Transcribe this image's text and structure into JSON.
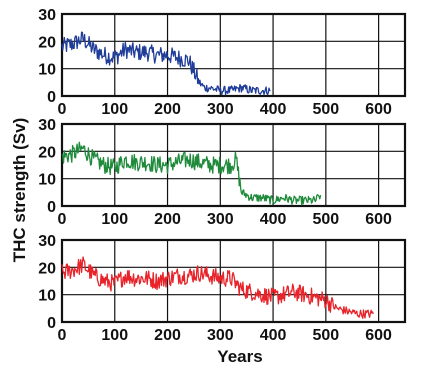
{
  "figure": {
    "ylabel": "THC strength (Sv)",
    "xlabel": "Years"
  },
  "chart_data": [
    {
      "type": "line",
      "xlim": [
        0,
        650
      ],
      "ylim": [
        0,
        30
      ],
      "x_ticks": [
        0,
        100,
        200,
        300,
        400,
        500,
        600
      ],
      "y_ticks": [
        0,
        10,
        20,
        30
      ],
      "grid": true,
      "color": "#1f3d99",
      "x": [
        0,
        20,
        40,
        60,
        80,
        100,
        120,
        140,
        160,
        180,
        200,
        220,
        240,
        250,
        260,
        270,
        280,
        300,
        320,
        340,
        360,
        380,
        395
      ],
      "y": [
        18,
        19,
        21,
        17,
        15,
        14,
        17,
        16,
        16,
        15,
        15,
        14,
        13,
        9,
        5,
        3,
        3,
        2,
        2,
        3,
        2,
        2,
        2
      ]
    },
    {
      "type": "line",
      "xlim": [
        0,
        650
      ],
      "ylim": [
        0,
        30
      ],
      "x_ticks": [
        0,
        100,
        200,
        300,
        400,
        500,
        600
      ],
      "y_ticks": [
        0,
        10,
        20,
        30
      ],
      "grid": true,
      "color": "#1e8a3a",
      "x": [
        0,
        20,
        40,
        60,
        80,
        100,
        120,
        140,
        160,
        180,
        200,
        220,
        240,
        260,
        280,
        300,
        320,
        330,
        340,
        360,
        380,
        400,
        420,
        440,
        460,
        480,
        490
      ],
      "y": [
        18,
        19,
        21,
        17,
        15,
        14,
        17,
        16,
        16,
        15,
        15,
        16,
        17,
        16,
        15,
        15,
        15,
        17,
        5,
        3,
        3,
        2,
        3,
        2,
        2,
        2,
        4
      ]
    },
    {
      "type": "line",
      "xlim": [
        0,
        650
      ],
      "ylim": [
        0,
        30
      ],
      "x_ticks": [
        0,
        100,
        200,
        300,
        400,
        500,
        600
      ],
      "y_ticks": [
        0,
        10,
        20,
        30
      ],
      "grid": true,
      "color": "#e8232a",
      "x": [
        0,
        20,
        40,
        60,
        80,
        100,
        120,
        140,
        160,
        180,
        200,
        220,
        240,
        260,
        280,
        300,
        320,
        340,
        360,
        380,
        400,
        420,
        440,
        460,
        480,
        500,
        520,
        540,
        560,
        580,
        590
      ],
      "y": [
        18,
        19,
        21,
        17,
        15,
        14,
        17,
        16,
        16,
        15,
        16,
        17,
        17,
        18,
        17,
        16,
        16,
        12,
        11,
        10,
        9,
        10,
        11,
        10,
        9,
        8,
        5,
        4,
        3,
        3,
        3
      ]
    }
  ]
}
